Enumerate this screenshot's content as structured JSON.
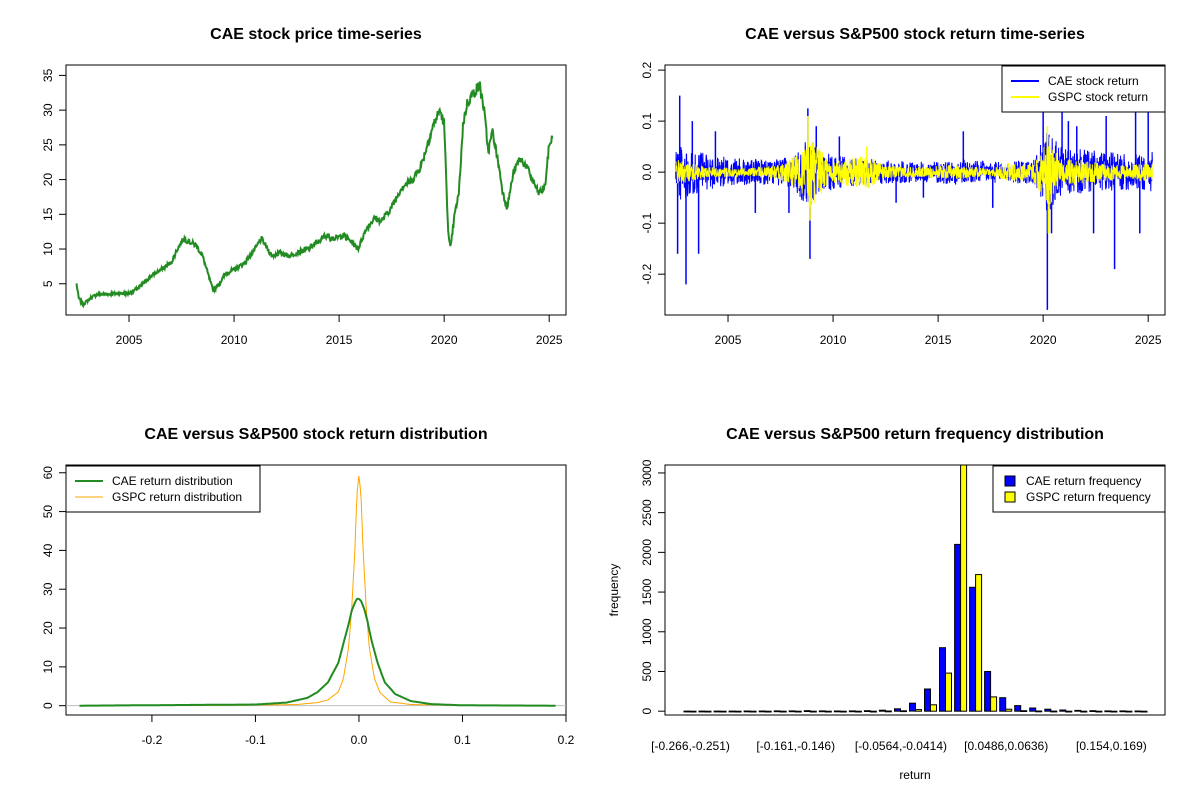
{
  "charts": [
    {
      "type": "line",
      "title": "CAE stock price time-series",
      "xlabel": "",
      "ylabel": "",
      "xlim": [
        2002.0,
        2025.8
      ],
      "ylim": [
        0.5,
        36.5
      ],
      "x_ticks": [
        "2005",
        "2010",
        "2015",
        "2020",
        "2025"
      ],
      "y_ticks": [
        "5",
        "10",
        "15",
        "20",
        "25",
        "30",
        "35"
      ],
      "series": [
        {
          "name": "CAE stock price",
          "color": "#228B22",
          "x": [
            2002.5,
            2002.6,
            2002.8,
            2003.0,
            2003.2,
            2003.5,
            2003.8,
            2004.0,
            2004.5,
            2005.0,
            2005.5,
            2006.0,
            2006.5,
            2007.0,
            2007.3,
            2007.6,
            2007.9,
            2008.2,
            2008.5,
            2008.8,
            2009.0,
            2009.3,
            2009.6,
            2010.0,
            2010.5,
            2011.0,
            2011.3,
            2011.6,
            2011.8,
            2012.2,
            2012.6,
            2013.0,
            2013.5,
            2014.0,
            2014.4,
            2014.8,
            2015.2,
            2015.6,
            2015.9,
            2016.3,
            2016.7,
            2017.0,
            2017.5,
            2018.0,
            2018.5,
            2018.9,
            2019.2,
            2019.5,
            2019.8,
            2020.0,
            2020.1,
            2020.2,
            2020.3,
            2020.5,
            2020.7,
            2020.9,
            2021.1,
            2021.4,
            2021.7,
            2021.9,
            2022.1,
            2022.3,
            2022.6,
            2022.8,
            2023.0,
            2023.3,
            2023.6,
            2023.9,
            2024.2,
            2024.5,
            2024.8,
            2025.0,
            2025.15
          ],
          "values": [
            5.0,
            3.0,
            2.0,
            2.5,
            3.0,
            3.5,
            3.5,
            3.5,
            3.6,
            3.6,
            4.5,
            6.0,
            7.0,
            8.0,
            10.0,
            11.5,
            11.0,
            10.5,
            9.0,
            6.0,
            4.0,
            5.0,
            6.5,
            7.0,
            8.0,
            10.0,
            11.5,
            10.0,
            9.0,
            9.5,
            9.0,
            9.5,
            10.0,
            11.0,
            12.0,
            11.5,
            12.0,
            11.0,
            10.0,
            13.0,
            14.5,
            14.0,
            16.0,
            19.0,
            20.0,
            22.0,
            25.0,
            28.0,
            30.0,
            28.0,
            20.0,
            12.0,
            10.0,
            15.0,
            18.0,
            28.0,
            31.0,
            32.5,
            33.5,
            30.0,
            24.0,
            27.0,
            22.0,
            18.0,
            16.0,
            21.0,
            23.0,
            22.0,
            20.0,
            18.0,
            19.0,
            25.0,
            26.0
          ]
        }
      ]
    },
    {
      "type": "line",
      "title": "CAE versus S&P500 stock return time-series",
      "xlabel": "",
      "ylabel": "",
      "xlim": [
        2002.0,
        2025.8
      ],
      "ylim": [
        -0.28,
        0.21
      ],
      "x_ticks": [
        "2005",
        "2010",
        "2015",
        "2020",
        "2025"
      ],
      "y_ticks": [
        "-0.2",
        "-0.1",
        "0.0",
        "0.1",
        "0.2"
      ],
      "legend": {
        "position": "top-right",
        "entries": [
          "CAE stock return",
          "GSPC stock return"
        ]
      },
      "series": [
        {
          "name": "CAE stock return",
          "color": "#0000FF",
          "band_x": [
            2002.5,
            2003.0,
            2004.0,
            2005.0,
            2006.0,
            2007.0,
            2008.0,
            2008.8,
            2009.5,
            2010.5,
            2012.0,
            2014.0,
            2016.0,
            2018.0,
            2019.5,
            2020.2,
            2021.0,
            2022.0,
            2023.0,
            2024.0,
            2025.2
          ],
          "band_values": [
            0.06,
            0.05,
            0.035,
            0.03,
            0.025,
            0.025,
            0.03,
            0.07,
            0.04,
            0.03,
            0.025,
            0.02,
            0.025,
            0.02,
            0.025,
            0.08,
            0.045,
            0.045,
            0.04,
            0.035,
            0.04
          ],
          "spikes": [
            [
              2002.7,
              0.15
            ],
            [
              2002.6,
              -0.16
            ],
            [
              2003.0,
              -0.22
            ],
            [
              2003.3,
              0.1
            ],
            [
              2003.6,
              -0.16
            ],
            [
              2004.4,
              0.08
            ],
            [
              2006.3,
              -0.08
            ],
            [
              2007.9,
              -0.08
            ],
            [
              2008.8,
              0.125
            ],
            [
              2008.9,
              -0.17
            ],
            [
              2009.2,
              0.09
            ],
            [
              2010.3,
              0.07
            ],
            [
              2013.0,
              -0.06
            ],
            [
              2014.3,
              -0.05
            ],
            [
              2016.2,
              0.08
            ],
            [
              2017.6,
              -0.07
            ],
            [
              2020.0,
              0.14
            ],
            [
              2020.2,
              -0.27
            ],
            [
              2020.4,
              -0.12
            ],
            [
              2020.9,
              0.13
            ],
            [
              2021.2,
              0.1
            ],
            [
              2021.6,
              0.09
            ],
            [
              2022.4,
              -0.12
            ],
            [
              2023.0,
              0.11
            ],
            [
              2023.4,
              -0.19
            ],
            [
              2024.4,
              0.14
            ],
            [
              2024.6,
              -0.12
            ],
            [
              2025.0,
              0.13
            ]
          ]
        },
        {
          "name": "GSPC stock return",
          "color": "#FFFF00",
          "band_x": [
            2002.5,
            2003.0,
            2004.0,
            2006.0,
            2007.5,
            2008.5,
            2008.9,
            2009.3,
            2010.0,
            2011.6,
            2012.5,
            2014.0,
            2016.0,
            2017.5,
            2018.5,
            2019.5,
            2020.1,
            2020.3,
            2020.8,
            2022.0,
            2023.0,
            2024.0,
            2025.2
          ],
          "band_values": [
            0.025,
            0.02,
            0.01,
            0.008,
            0.015,
            0.04,
            0.075,
            0.05,
            0.02,
            0.035,
            0.012,
            0.01,
            0.015,
            0.006,
            0.02,
            0.015,
            0.06,
            0.07,
            0.025,
            0.025,
            0.018,
            0.013,
            0.02
          ],
          "spikes": [
            [
              2008.8,
              0.11
            ],
            [
              2008.9,
              -0.095
            ],
            [
              2011.6,
              0.05
            ],
            [
              2020.2,
              0.09
            ],
            [
              2020.25,
              -0.12
            ]
          ]
        }
      ]
    },
    {
      "type": "line",
      "title": "CAE versus S&P500 stock return distribution",
      "xlabel": "",
      "ylabel": "",
      "xlim": [
        -0.283,
        0.2
      ],
      "ylim": [
        -2.4,
        62
      ],
      "x_ticks": [
        "-0.2",
        "-0.1",
        "0.0",
        "0.1",
        "0.2"
      ],
      "y_ticks": [
        "0",
        "10",
        "20",
        "30",
        "40",
        "50",
        "60"
      ],
      "legend": {
        "position": "top-left",
        "entries": [
          "CAE return distribution",
          "GSPC return distribution"
        ]
      },
      "series": [
        {
          "name": "CAE return distribution",
          "color": "#228B22",
          "x": [
            -0.27,
            -0.1,
            -0.07,
            -0.05,
            -0.04,
            -0.03,
            -0.02,
            -0.015,
            -0.01,
            -0.007,
            -0.004,
            -0.002,
            0.0,
            0.002,
            0.005,
            0.008,
            0.012,
            0.018,
            0.025,
            0.035,
            0.05,
            0.07,
            0.1,
            0.19
          ],
          "values": [
            0.0,
            0.3,
            0.8,
            2.0,
            3.5,
            6.0,
            11.0,
            16.0,
            21.0,
            24.5,
            26.5,
            27.5,
            27.5,
            27.0,
            25.0,
            22.0,
            17.0,
            11.0,
            6.0,
            3.0,
            1.2,
            0.4,
            0.1,
            0.0
          ]
        },
        {
          "name": "GSPC return distribution",
          "color": "#FFA500",
          "x": [
            -0.27,
            -0.12,
            -0.06,
            -0.04,
            -0.03,
            -0.02,
            -0.015,
            -0.01,
            -0.007,
            -0.004,
            -0.002,
            0.0,
            0.002,
            0.004,
            0.007,
            0.01,
            0.015,
            0.02,
            0.03,
            0.05,
            0.1,
            0.19
          ],
          "values": [
            0.0,
            0.1,
            0.3,
            0.8,
            1.5,
            3.5,
            7.0,
            15.0,
            25.0,
            40.0,
            54.0,
            59.5,
            54.0,
            40.0,
            25.0,
            15.0,
            7.0,
            3.5,
            1.0,
            0.3,
            0.1,
            0.0
          ]
        }
      ],
      "baseline": {
        "value": 0,
        "color": "#BEBEBE"
      }
    },
    {
      "type": "bar",
      "title": "CAE versus S&P500 return frequency distribution",
      "xlabel": "return",
      "ylabel": "frequency",
      "ylim": [
        -48,
        3100
      ],
      "y_ticks": [
        "0",
        "500",
        "1000",
        "1500",
        "2000",
        "2500",
        "3000"
      ],
      "x_labels": [
        "[-0.266,-0.251)",
        "[-0.161,-0.146)",
        "[-0.0564,-0.0414)",
        "[0.0486,0.0636)",
        "[0.154,0.169)"
      ],
      "x_label_bins": [
        0,
        7,
        14,
        21,
        28
      ],
      "n_bins": 31,
      "legend": {
        "position": "top-right",
        "entries": [
          "CAE return frequency",
          "GSPC return frequency"
        ]
      },
      "series": [
        {
          "name": "CAE return frequency",
          "color": "#0000FF",
          "values": [
            1,
            1,
            1,
            1,
            2,
            2,
            3,
            4,
            6,
            4,
            2,
            3,
            6,
            12,
            30,
            100,
            280,
            800,
            2100,
            1560,
            500,
            170,
            70,
            40,
            25,
            15,
            10,
            6,
            4,
            3,
            2
          ]
        },
        {
          "name": "GSPC return frequency",
          "color": "#FFFF00",
          "values": [
            0,
            0,
            0,
            0,
            0,
            0,
            0,
            0,
            0,
            0,
            0,
            0,
            0,
            2,
            5,
            20,
            80,
            480,
            3100,
            1720,
            180,
            25,
            6,
            2,
            1,
            0,
            0,
            0,
            0,
            0,
            0
          ]
        }
      ]
    }
  ]
}
